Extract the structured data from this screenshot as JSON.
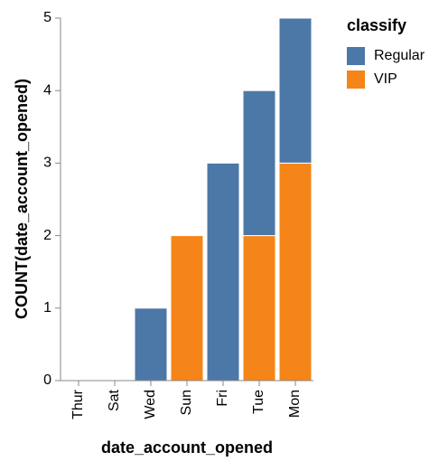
{
  "chart_data": {
    "type": "bar",
    "stacked": true,
    "categories": [
      "Thur",
      "Sat",
      "Wed",
      "Sun",
      "Fri",
      "Tue",
      "Mon"
    ],
    "series": [
      {
        "name": "Regular",
        "color": "#4c78a8",
        "values": [
          0,
          0,
          1,
          0,
          3,
          2,
          2
        ]
      },
      {
        "name": "VIP",
        "color": "#f58518",
        "values": [
          0,
          0,
          0,
          2,
          0,
          2,
          3
        ]
      }
    ],
    "stack_order": [
      "VIP",
      "Regular"
    ],
    "xlabel": "date_account_opened",
    "ylabel": "COUNT(date_account_opened)",
    "ylim": [
      0,
      5
    ],
    "yticks": [
      0,
      1,
      2,
      3,
      4,
      5
    ],
    "grid": false,
    "legend": {
      "title": "classify",
      "placement": "right"
    }
  }
}
